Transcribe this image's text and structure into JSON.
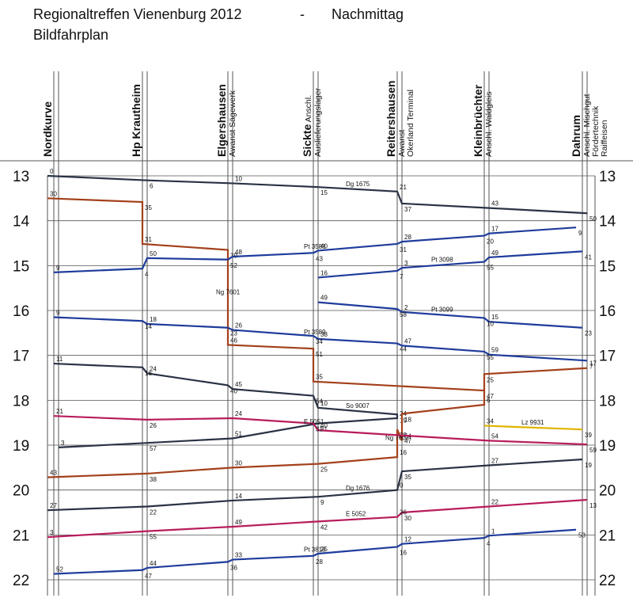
{
  "header": {
    "title": "Regionaltreffen Vienenburg 2012",
    "separator": "-",
    "part": "Nachmittag",
    "subtitle": "Bildfahrplan"
  },
  "stations": [
    {
      "name": "Nordkurve",
      "sub": []
    },
    {
      "name": "Hp Krautheim",
      "sub": []
    },
    {
      "name": "Elgershausen",
      "sub": [
        "Awanst Sägewerk"
      ]
    },
    {
      "name": "Sickte",
      "suffix": "Anschl.",
      "sub": [
        "Auslieferungslager"
      ]
    },
    {
      "name": "Reitershausen",
      "sub": [
        "Awanst",
        "Okerland Terminal"
      ]
    },
    {
      "name": "Kleinbrüchter",
      "sub": [
        "Anschl. Waldgleis"
      ]
    },
    {
      "name": "Dahrum",
      "sub": [
        "Anschl. Mischgut",
        "Fördertechnik",
        "Raiffeisen"
      ]
    }
  ],
  "hours": [
    "13",
    "14",
    "15",
    "16",
    "17",
    "18",
    "19",
    "20",
    "21",
    "22"
  ],
  "colors": {
    "Dg": "#2a3245",
    "Pt": "#1f3c9c",
    "Ng": "#a3401c",
    "So": "#2a3245",
    "E": "#b81c5c",
    "Lz": "#e0b400",
    "grid": "#555555"
  },
  "trains": [
    {
      "label": "Dg 1675",
      "type": "Dg",
      "times": [
        "13:00",
        "13:06",
        "13:10",
        "13:15",
        "13:21",
        "13:37",
        "13:43",
        "13:50"
      ]
    },
    {
      "label": "Ng 7601",
      "type": "Ng",
      "times": [
        "13:30",
        "13:35",
        "14:31",
        "14:39",
        "16:46",
        "16:51",
        "17:35",
        "17:47"
      ]
    },
    {
      "label": "Pt 3588",
      "type": "Pt",
      "times": [
        "15:09",
        "15:04",
        "14:50",
        "14:52",
        "14:48",
        "14:43",
        "14:40",
        "14:31",
        "14:28",
        "14:20",
        "14:17",
        "14:09"
      ]
    },
    {
      "label": "Pt 3098",
      "type": "Pt",
      "times": [
        "15:16",
        "15:07",
        "15:03",
        "14:55",
        "14:49",
        "14:41"
      ]
    },
    {
      "label": "Pt 3099",
      "type": "Pt",
      "times": [
        "15:49",
        "15:58",
        "16:02",
        "16:10",
        "16:15",
        "16:23"
      ]
    },
    {
      "label": "Pt 3589",
      "type": "Pt",
      "times": [
        "16:09",
        "16:14",
        "16:18",
        "16:23",
        "16:26",
        "16:34",
        "16:38",
        "16:44",
        "16:47",
        "16:55",
        "16:59",
        "17:07"
      ]
    },
    {
      "label": "So 9007",
      "type": "So",
      "times": [
        "17:11",
        "17:16",
        "17:24",
        "17:40",
        "17:45",
        "17:54",
        "18:10",
        "18:19",
        "18:24",
        "18:31",
        "18:51",
        "18:57",
        "19:03"
      ]
    },
    {
      "label": "Ng 7602",
      "type": "Ng",
      "times": [
        "17:17",
        "17:25",
        "18:06",
        "18:18",
        "18:54",
        "18:39",
        "19:16",
        "19:25",
        "19:30",
        "19:38",
        "19:43"
      ]
    },
    {
      "label": "E 5051",
      "type": "E",
      "times": [
        "18:21",
        "18:26",
        "18:24",
        "18:31",
        "18:40",
        "18:47",
        "18:54",
        "18:59"
      ]
    },
    {
      "label": "Lz 9931",
      "type": "Lz",
      "times": [
        "18:34",
        "18:39"
      ]
    },
    {
      "label": "Dg 1676",
      "type": "Dg",
      "times": [
        "20:27",
        "20:22",
        "20:14",
        "20:09",
        "20:00",
        "19:35",
        "19:27",
        "19:19"
      ]
    },
    {
      "label": "E 5052",
      "type": "E",
      "times": [
        "21:03",
        "20:55",
        "20:49",
        "20:42",
        "20:36",
        "20:30",
        "20:22",
        "20:13"
      ]
    },
    {
      "label": "Pt 3818",
      "type": "Pt",
      "times": [
        "21:52",
        "21:47",
        "21:44",
        "21:36",
        "21:33",
        "21:28",
        "21:25",
        "21:16",
        "21:12",
        "21:04",
        "21:01",
        "20:53"
      ]
    }
  ]
}
